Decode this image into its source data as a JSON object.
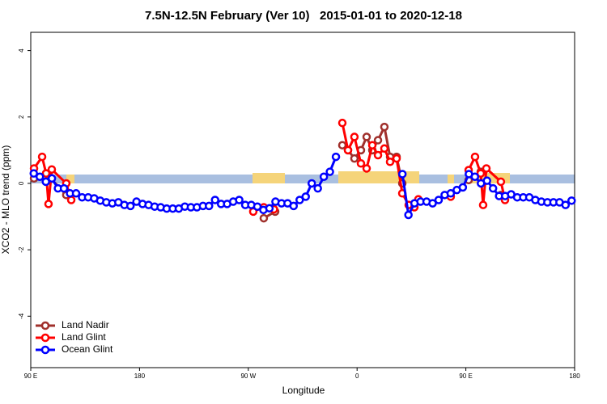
{
  "chart_data": {
    "type": "line",
    "title": "7.5N-12.5N February (Ver 10)   2015-01-01 to 2020-12-18",
    "x_label": "Longitude",
    "y_label": "XCO2 - MLO trend (ppm)",
    "xlim": [
      90,
      540
    ],
    "ylim": [
      -5.55,
      4.55
    ],
    "xticks": [
      {
        "value": 90,
        "label": "90 E"
      },
      {
        "value": 180,
        "label": "180"
      },
      {
        "value": 270,
        "label": "90 W"
      },
      {
        "value": 360,
        "label": "0"
      },
      {
        "value": 450,
        "label": "90 E"
      },
      {
        "value": 540,
        "label": "180"
      }
    ],
    "yticks": [
      4,
      2,
      0,
      -2,
      -4
    ],
    "legend": "bottom-left",
    "series": [
      {
        "name": "Land Nadir",
        "color": "#a0302c",
        "x": [
          92.7,
          102.7,
          119.4,
          130,
          282.8,
          292.2,
          300,
          347.8,
          352.5,
          357.8,
          363.2,
          367.9,
          372.6,
          377.3,
          382.6,
          387.3,
          392.7,
          397.4,
          420,
          452.3,
          462.3,
          470,
          479
        ],
        "values": [
          0.15,
          0.3,
          -0.35,
          null,
          -1.05,
          -0.85,
          null,
          1.15,
          1.0,
          0.75,
          1.0,
          1.4,
          1.0,
          1.3,
          1.7,
          0.8,
          0.8,
          0.0,
          null,
          0.1,
          0.35,
          null,
          -0.35
        ]
      },
      {
        "name": "Land Glint",
        "color": "#ff0000",
        "x": [
          92.7,
          99.4,
          102.7,
          104.7,
          107.4,
          119.4,
          123.5,
          130,
          274.1,
          282.8,
          291.2,
          300,
          347.8,
          352.5,
          357.8,
          363.2,
          367.9,
          372.6,
          377.3,
          382.6,
          387.3,
          392.7,
          397.4,
          402.7,
          407.4,
          410.7,
          415,
          437.5,
          445,
          452.3,
          457.6,
          462.3,
          464.3,
          467,
          479,
          482.4
        ],
        "values": [
          0.45,
          0.8,
          0.3,
          -0.62,
          0.42,
          0.0,
          -0.5,
          null,
          -0.85,
          -0.72,
          -0.78,
          null,
          1.82,
          1.0,
          1.4,
          0.6,
          0.45,
          1.15,
          0.85,
          1.05,
          0.65,
          0.75,
          -0.3,
          -0.65,
          -0.72,
          -0.48,
          null,
          -0.4,
          null,
          0.4,
          0.8,
          0.3,
          -0.65,
          0.45,
          0.05,
          -0.5
        ]
      },
      {
        "name": "Ocean Glint",
        "color": "#0000ff",
        "x": [
          92.5,
          97.5,
          102.5,
          107.5,
          112.5,
          117.5,
          122.5,
          127.5,
          132.5,
          137.5,
          142.5,
          147.5,
          152.5,
          157.5,
          162.5,
          167.5,
          172.5,
          177.5,
          182.5,
          187.5,
          192.5,
          197.5,
          202.5,
          207.5,
          212.5,
          217.5,
          222.5,
          227.5,
          232.5,
          237.5,
          242.5,
          247.5,
          252.5,
          257.5,
          262.5,
          267.5,
          272.5,
          277.5,
          282.5,
          287.5,
          292.5,
          297.5,
          302.5,
          307.5,
          312.5,
          317.5,
          322.5,
          327.5,
          332.5,
          337.5,
          342.5,
          347.5,
          397.5,
          402.5,
          407.5,
          412.5,
          417.5,
          422.5,
          427.5,
          432.5,
          437.5,
          442.5,
          447.5,
          452.5,
          457.5,
          462.5,
          467.5,
          472.5,
          477.5,
          482.5,
          487.5,
          492.5,
          497.5,
          502.5,
          507.5,
          512.5,
          517.5,
          522.5,
          527.5,
          532.5,
          537.5
        ],
        "values": [
          0.3,
          0.2,
          0.05,
          0.15,
          -0.15,
          -0.15,
          -0.3,
          -0.3,
          -0.42,
          -0.42,
          -0.45,
          -0.52,
          -0.57,
          -0.6,
          -0.57,
          -0.65,
          -0.68,
          -0.55,
          -0.62,
          -0.65,
          -0.7,
          -0.72,
          -0.76,
          -0.76,
          -0.76,
          -0.7,
          -0.72,
          -0.72,
          -0.68,
          -0.68,
          -0.5,
          -0.62,
          -0.62,
          -0.55,
          -0.5,
          -0.65,
          -0.65,
          -0.7,
          -0.8,
          -0.75,
          -0.55,
          -0.6,
          -0.6,
          -0.68,
          -0.5,
          -0.4,
          0.0,
          -0.15,
          0.2,
          0.35,
          0.8,
          null,
          0.28,
          -0.95,
          -0.6,
          -0.55,
          -0.55,
          -0.6,
          -0.5,
          -0.35,
          -0.3,
          -0.2,
          -0.12,
          0.28,
          0.2,
          0.0,
          0.08,
          -0.15,
          -0.38,
          -0.38,
          -0.33,
          -0.42,
          -0.42,
          -0.42,
          -0.5,
          -0.55,
          -0.57,
          -0.57,
          -0.57,
          -0.65,
          -0.52
        ]
      }
    ]
  }
}
